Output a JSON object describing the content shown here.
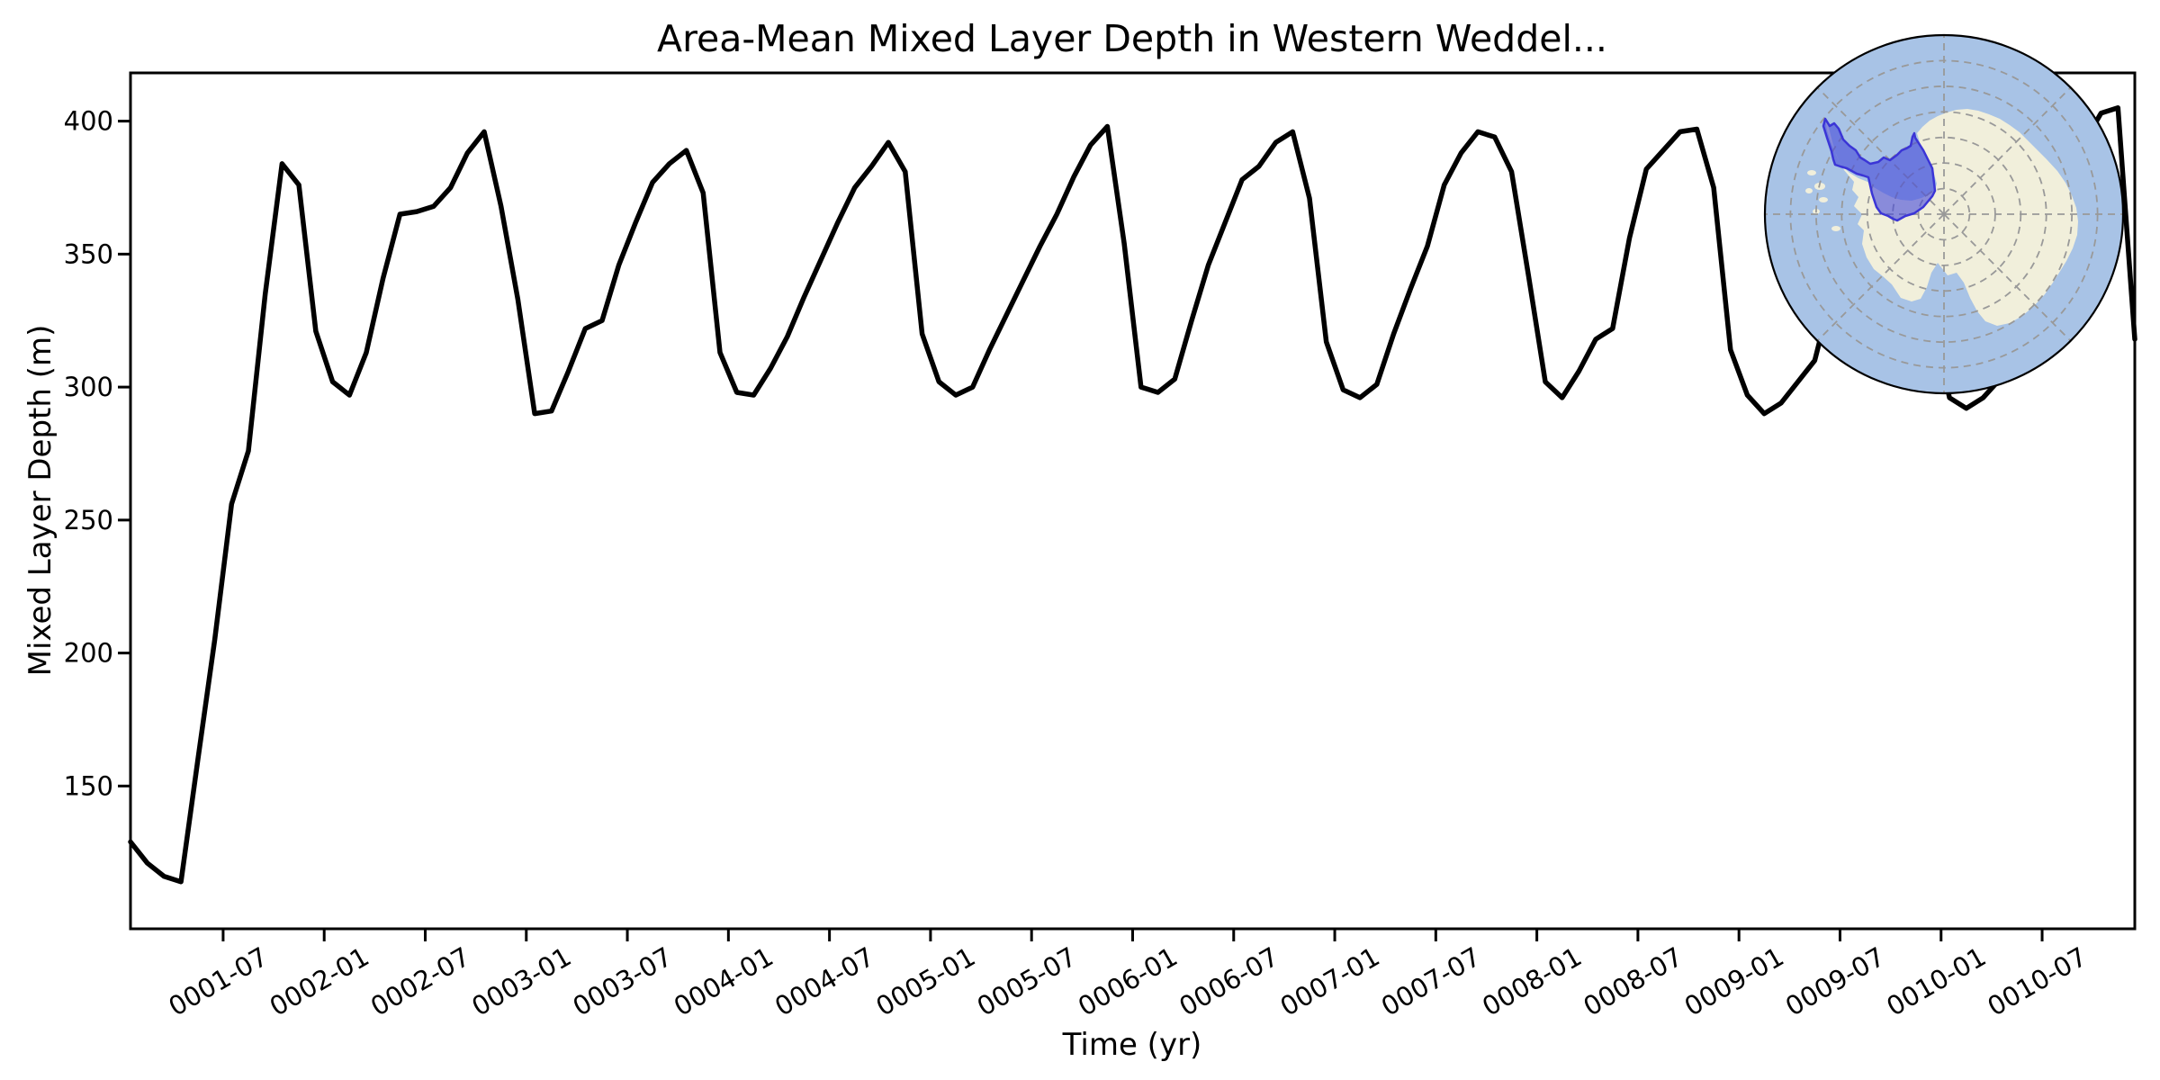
{
  "figure": {
    "title": "Area-Mean Mixed Layer Depth in Western Weddel...",
    "background": "#ffffff"
  },
  "axes": {
    "xlabel": "Time (yr)",
    "ylabel": "Mixed Layer Depth (m)",
    "y_ticks": [
      150,
      200,
      250,
      300,
      350,
      400
    ],
    "x_tick_labels": [
      "0001-07",
      "0002-01",
      "0002-07",
      "0003-01",
      "0003-07",
      "0004-01",
      "0004-07",
      "0005-01",
      "0005-07",
      "0006-01",
      "0006-07",
      "0007-01",
      "0007-07",
      "0008-01",
      "0008-07",
      "0009-01",
      "0009-07",
      "0010-01",
      "0010-07"
    ]
  },
  "chart_data": {
    "type": "line",
    "title": "Area-Mean Mixed Layer Depth in Western Weddel...",
    "xlabel": "Time (yr)",
    "ylabel": "Mixed Layer Depth (m)",
    "x_start": "0001-01",
    "x_interval": "1 month",
    "n_points": 120,
    "values": [
      129,
      121,
      116,
      114,
      160,
      205,
      256,
      276,
      335,
      384,
      376,
      321,
      302,
      297,
      313,
      341,
      365,
      366,
      368,
      375,
      388,
      396,
      368,
      333,
      290,
      291,
      306,
      322,
      325,
      346,
      362,
      377,
      384,
      389,
      373,
      313,
      298,
      297,
      307,
      319,
      334,
      348,
      362,
      375,
      383,
      392,
      381,
      320,
      302,
      297,
      300,
      314,
      327,
      340,
      353,
      365,
      379,
      391,
      398,
      354,
      300,
      298,
      303,
      325,
      346,
      362,
      378,
      383,
      392,
      396,
      371,
      317,
      299,
      296,
      301,
      320,
      337,
      353,
      376,
      388,
      396,
      394,
      381,
      342,
      302,
      296,
      306,
      318,
      322,
      356,
      382,
      389,
      396,
      397,
      375,
      314,
      297,
      290,
      294,
      302,
      310,
      335,
      362,
      385,
      397,
      400,
      385,
      325,
      296,
      292,
      296,
      303,
      315,
      336,
      356,
      376,
      392,
      403,
      405,
      318
    ],
    "ylim": [
      96,
      418
    ],
    "y_ticks": [
      150,
      200,
      250,
      300,
      350,
      400
    ],
    "x_tick_labels": [
      "0001-07",
      "0002-01",
      "0002-07",
      "0003-01",
      "0003-07",
      "0004-01",
      "0004-07",
      "0005-01",
      "0005-07",
      "0006-01",
      "0006-07",
      "0007-01",
      "0007-07",
      "0008-01",
      "0008-07",
      "0009-01",
      "0009-07",
      "0010-01",
      "0010-07"
    ],
    "legend": null,
    "grid": false,
    "line_color": "#000000",
    "line_width": 5.5
  },
  "inset": {
    "name": "antarctic-polar-stereographic-inset",
    "region_label": "Western Weddell region highlight",
    "colors": {
      "ocean": "#a8c3e6",
      "land": "#f1efdb",
      "region_fill": "#4547d8",
      "region_fill_opacity": 0.6,
      "region_edge": "#3b35d6",
      "graticule": "#999999",
      "outline": "#000000"
    },
    "graticule_rings": 6,
    "graticule_radials": 8,
    "continent": [
      [
        2028,
        132
      ],
      [
        2032,
        142
      ],
      [
        2036,
        158
      ],
      [
        2040,
        172
      ],
      [
        2046,
        184
      ],
      [
        2055,
        192
      ],
      [
        2065,
        198
      ],
      [
        2075,
        202
      ],
      [
        2082,
        208
      ],
      [
        2092,
        214
      ],
      [
        2102,
        219
      ],
      [
        2112,
        222
      ],
      [
        2124,
        223
      ],
      [
        2135,
        220
      ],
      [
        2145,
        215
      ],
      [
        2150,
        211
      ],
      [
        2152,
        204
      ],
      [
        2149,
        194
      ],
      [
        2144,
        182
      ],
      [
        2138,
        170
      ],
      [
        2133,
        158
      ],
      [
        2130,
        148
      ],
      [
        2136,
        141
      ],
      [
        2144,
        134
      ],
      [
        2153,
        129
      ],
      [
        2163,
        125
      ],
      [
        2174,
        122
      ],
      [
        2186,
        121
      ],
      [
        2198,
        123
      ],
      [
        2210,
        127
      ],
      [
        2222,
        132
      ],
      [
        2233,
        139
      ],
      [
        2244,
        147
      ],
      [
        2254,
        157
      ],
      [
        2263,
        166
      ],
      [
        2274,
        177
      ],
      [
        2286,
        190
      ],
      [
        2295,
        203
      ],
      [
        2302,
        217
      ],
      [
        2307,
        231
      ],
      [
        2309,
        246
      ],
      [
        2308,
        261
      ],
      [
        2303,
        276
      ],
      [
        2296,
        290
      ],
      [
        2288,
        303
      ],
      [
        2281,
        314
      ],
      [
        2272,
        327
      ],
      [
        2260,
        340
      ],
      [
        2247,
        351
      ],
      [
        2233,
        359
      ],
      [
        2219,
        362
      ],
      [
        2206,
        357
      ],
      [
        2197,
        346
      ],
      [
        2189,
        331
      ],
      [
        2182,
        314
      ],
      [
        2174,
        303
      ],
      [
        2164,
        306
      ],
      [
        2153,
        292
      ],
      [
        2146,
        303
      ],
      [
        2141,
        319
      ],
      [
        2134,
        332
      ],
      [
        2124,
        335
      ],
      [
        2112,
        331
      ],
      [
        2102,
        316
      ],
      [
        2092,
        307
      ],
      [
        2082,
        299
      ],
      [
        2074,
        286
      ],
      [
        2069,
        271
      ],
      [
        2071,
        256
      ],
      [
        2064,
        249
      ],
      [
        2069,
        238
      ],
      [
        2060,
        229
      ],
      [
        2065,
        219
      ],
      [
        2058,
        211
      ],
      [
        2060,
        202
      ],
      [
        2054,
        195
      ],
      [
        2049,
        189
      ],
      [
        2044,
        180
      ],
      [
        2039,
        169
      ],
      [
        2034,
        157
      ],
      [
        2030,
        145
      ]
    ],
    "islands": [
      [
        2013,
        192,
        5,
        3
      ],
      [
        2022,
        207,
        6,
        4
      ],
      [
        2010,
        212,
        4,
        3
      ],
      [
        2026,
        222,
        5,
        3
      ],
      [
        2018,
        235,
        4,
        3
      ],
      [
        2040,
        254,
        5,
        3
      ]
    ],
    "region": [
      [
        2028,
        132
      ],
      [
        2033,
        140
      ],
      [
        2038,
        137
      ],
      [
        2043,
        143
      ],
      [
        2048,
        155
      ],
      [
        2055,
        162
      ],
      [
        2062,
        167
      ],
      [
        2067,
        175
      ],
      [
        2072,
        178
      ],
      [
        2078,
        182
      ],
      [
        2087,
        180
      ],
      [
        2093,
        175
      ],
      [
        2100,
        178
      ],
      [
        2108,
        172
      ],
      [
        2113,
        167
      ],
      [
        2118,
        165
      ],
      [
        2123,
        162
      ],
      [
        2125,
        152
      ],
      [
        2127,
        148
      ],
      [
        2128,
        153
      ],
      [
        2137,
        167
      ],
      [
        2147,
        187
      ],
      [
        2150,
        212
      ],
      [
        2147,
        218
      ],
      [
        2137,
        230
      ],
      [
        2127,
        237
      ],
      [
        2117,
        240
      ],
      [
        2108,
        245
      ],
      [
        2103,
        243
      ],
      [
        2098,
        240
      ],
      [
        2090,
        237
      ],
      [
        2085,
        230
      ],
      [
        2080,
        215
      ],
      [
        2076,
        197
      ],
      [
        2070,
        195
      ],
      [
        2063,
        193
      ],
      [
        2052,
        187
      ],
      [
        2045,
        185
      ],
      [
        2039,
        183
      ],
      [
        2037,
        177
      ],
      [
        2035,
        168
      ],
      [
        2033,
        162
      ],
      [
        2030,
        153
      ],
      [
        2026,
        140
      ]
    ]
  }
}
